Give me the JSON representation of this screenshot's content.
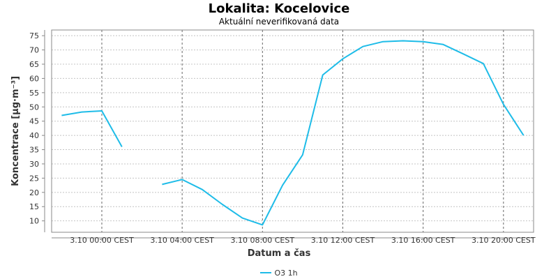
{
  "chart_data": {
    "type": "line",
    "title": "Lokalita: Kocelovice",
    "subtitle": "Aktuální neverifikovaná data",
    "xlabel": "Datum a čas",
    "ylabel": "Koncentrace [µg·m⁻³]",
    "ylim": [
      6,
      77
    ],
    "yticks": [
      10,
      15,
      20,
      25,
      30,
      35,
      40,
      45,
      50,
      55,
      60,
      65,
      70,
      75
    ],
    "x_hours_range": [
      -2.5,
      21.5
    ],
    "xtick_hours": [
      0,
      4,
      8,
      12,
      16,
      20
    ],
    "xtick_labels": [
      "3.10 00:00 CEST",
      "3.10 04:00 CEST",
      "3.10 08:00 CEST",
      "3.10 12:00 CEST",
      "3.10 16:00 CEST",
      "3.10 20:00 CEST"
    ],
    "grid": true,
    "legend_position": "bottom",
    "series": [
      {
        "name": "O3 1h",
        "color": "#1ebce8",
        "points": [
          [
            -2,
            47.0
          ],
          [
            -1,
            48.2
          ],
          [
            0,
            48.6
          ],
          [
            1,
            36.0
          ],
          [
            2,
            null
          ],
          [
            3,
            22.8
          ],
          [
            4,
            24.5
          ],
          [
            5,
            21.0
          ],
          [
            6,
            15.8
          ],
          [
            7,
            11.0
          ],
          [
            8,
            8.6
          ],
          [
            9,
            22.5
          ],
          [
            10,
            33.2
          ],
          [
            11,
            61.2
          ],
          [
            12,
            66.9
          ],
          [
            13,
            71.2
          ],
          [
            14,
            72.9
          ],
          [
            15,
            73.2
          ],
          [
            16,
            72.9
          ],
          [
            17,
            71.9
          ],
          [
            18,
            68.6
          ],
          [
            19,
            65.2
          ],
          [
            20,
            50.9
          ],
          [
            21,
            40.0
          ]
        ]
      }
    ]
  }
}
